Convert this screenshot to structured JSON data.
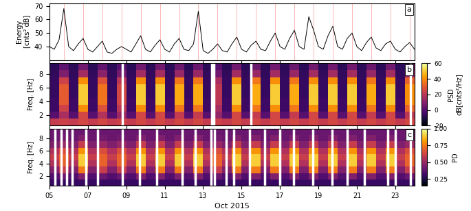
{
  "chart_data": [
    {
      "type": "line",
      "ylabel": "Energy\n[cnts² dB]",
      "annotation": "a",
      "tick_labels": "y",
      "color": "#000000",
      "x": [
        5,
        5.25,
        5.5,
        5.75,
        6,
        6.25,
        6.5,
        6.75,
        7,
        7.25,
        7.5,
        7.75,
        8,
        8.25,
        8.5,
        8.75,
        9,
        9.25,
        9.5,
        9.75,
        10,
        10.25,
        10.5,
        10.75,
        11,
        11.25,
        11.5,
        11.75,
        12,
        12.25,
        12.5,
        12.75,
        13,
        13.25,
        13.5,
        13.75,
        14,
        14.25,
        14.5,
        14.75,
        15,
        15.25,
        15.5,
        15.75,
        16,
        16.25,
        16.5,
        16.75,
        17,
        17.25,
        17.5,
        17.75,
        18,
        18.25,
        18.5,
        18.75,
        19,
        19.25,
        19.5,
        19.75,
        20,
        20.25,
        20.5,
        20.75,
        21,
        21.25,
        21.5,
        21.75,
        22,
        22.25,
        22.5,
        22.75,
        23,
        23.25,
        23.5,
        23.75,
        24
      ],
      "values": [
        40,
        38,
        45,
        68,
        40,
        37,
        42,
        46,
        38,
        36,
        40,
        44,
        36,
        35,
        38,
        40,
        38,
        36,
        42,
        48,
        38,
        36,
        41,
        45,
        38,
        36,
        42,
        46,
        38,
        37,
        42,
        66,
        37,
        35,
        38,
        42,
        37,
        36,
        42,
        47,
        38,
        36,
        41,
        44,
        38,
        37,
        44,
        50,
        40,
        38,
        46,
        52,
        40,
        38,
        62,
        52,
        40,
        38,
        48,
        55,
        40,
        38,
        46,
        50,
        40,
        37,
        43,
        47,
        39,
        37,
        42,
        44,
        38,
        36,
        40,
        43,
        38
      ],
      "vlines": [
        5.75,
        6.75,
        7.75,
        8.75,
        9.75,
        10.75,
        11.75,
        12.75,
        13.75,
        14.75,
        15.75,
        16.75,
        17.75,
        18.75,
        19.75,
        20.75,
        21.75,
        22.75,
        23.75
      ],
      "xlim": [
        5,
        24
      ],
      "xticks": [
        {
          "value": 5,
          "label": "05"
        },
        {
          "value": 7,
          "label": "07"
        },
        {
          "value": 9,
          "label": "09"
        },
        {
          "value": 11,
          "label": "11"
        },
        {
          "value": 13,
          "label": "13"
        },
        {
          "value": 15,
          "label": "15"
        },
        {
          "value": 17,
          "label": "17"
        },
        {
          "value": 19,
          "label": "19"
        },
        {
          "value": 21,
          "label": "21"
        },
        {
          "value": 23,
          "label": "23"
        }
      ],
      "ylim": [
        30,
        72
      ],
      "yticks": [
        40,
        50,
        60,
        70
      ]
    },
    {
      "type": "heatmap",
      "ylabel": "Freq. [Hz]",
      "annotation": "b",
      "tick_labels": "y",
      "x_edges": [
        5,
        5.5,
        6,
        6.5,
        7,
        7.5,
        8,
        8.5,
        9,
        9.5,
        10,
        10.5,
        11,
        11.5,
        12,
        12.5,
        13,
        13.5,
        14,
        14.5,
        15,
        15.5,
        16,
        16.5,
        17,
        17.5,
        18,
        18.5,
        19,
        19.5,
        20,
        20.5,
        21,
        21.5,
        22,
        22.5,
        23,
        23.5,
        24
      ],
      "y_edges": [
        0.5,
        1.5,
        2.5,
        3.5,
        4.5,
        5.5,
        6.5,
        7.5,
        8.5,
        9.5
      ],
      "cells": [
        [
          22,
          24,
          22,
          25,
          22,
          25,
          22,
          24,
          22,
          25,
          22,
          25,
          22,
          25,
          22,
          25,
          22,
          24,
          22,
          25,
          22,
          25,
          22,
          25,
          22,
          25,
          22,
          25,
          22,
          25,
          22,
          25,
          22,
          25,
          22,
          25,
          22,
          25
        ],
        [
          0,
          16,
          0,
          25,
          0,
          18,
          0,
          14,
          0,
          25,
          0,
          25,
          0,
          22,
          0,
          22,
          0,
          12,
          0,
          25,
          0,
          22,
          0,
          25,
          0,
          22,
          0,
          25,
          0,
          25,
          0,
          25,
          0,
          22,
          0,
          25,
          0,
          20
        ],
        [
          -5,
          24,
          -5,
          40,
          -5,
          28,
          -5,
          20,
          -5,
          40,
          -5,
          40,
          -5,
          36,
          -5,
          36,
          -5,
          16,
          -5,
          40,
          -5,
          36,
          -5,
          40,
          -5,
          36,
          -5,
          40,
          -5,
          40,
          -5,
          40,
          -5,
          36,
          -5,
          40,
          -5,
          32
        ],
        [
          -5,
          30,
          -5,
          50,
          -5,
          35,
          -5,
          25,
          -5,
          50,
          -5,
          50,
          -5,
          45,
          -5,
          45,
          -5,
          20,
          -5,
          50,
          -5,
          45,
          -5,
          50,
          -5,
          45,
          -5,
          50,
          -5,
          50,
          -5,
          50,
          -5,
          45,
          -5,
          50,
          -5,
          40
        ],
        [
          -6,
          30,
          -6,
          50,
          -6,
          35,
          -6,
          25,
          -6,
          50,
          -6,
          50,
          -6,
          45,
          -6,
          45,
          -6,
          20,
          -6,
          50,
          -6,
          45,
          -6,
          50,
          -6,
          45,
          -6,
          50,
          -6,
          50,
          -6,
          50,
          -6,
          45,
          -6,
          50,
          -6,
          40
        ],
        [
          -6,
          30,
          -6,
          50,
          -6,
          35,
          -6,
          25,
          -6,
          50,
          -6,
          50,
          -6,
          45,
          -6,
          45,
          -6,
          20,
          -6,
          50,
          -6,
          45,
          -6,
          50,
          -6,
          45,
          -6,
          50,
          -6,
          50,
          -6,
          50,
          -6,
          45,
          -6,
          50,
          -6,
          40
        ],
        [
          -6,
          24,
          -6,
          40,
          -6,
          28,
          -6,
          20,
          -6,
          40,
          -6,
          40,
          -6,
          36,
          -6,
          36,
          -6,
          16,
          -6,
          40,
          -6,
          36,
          -6,
          40,
          -6,
          36,
          -6,
          40,
          -6,
          40,
          -6,
          40,
          -6,
          36,
          -6,
          40,
          -6,
          32
        ],
        [
          -7,
          8,
          -7,
          15,
          -7,
          10,
          -7,
          6,
          -7,
          15,
          -7,
          15,
          -7,
          13,
          -7,
          13,
          -7,
          5,
          -7,
          15,
          -7,
          13,
          -7,
          15,
          -7,
          13,
          -7,
          15,
          -7,
          15,
          -7,
          15,
          -7,
          13,
          -7,
          15,
          -7,
          12
        ],
        [
          -8,
          1,
          -8,
          5,
          -8,
          2,
          -8,
          0,
          -8,
          5,
          -8,
          5,
          -8,
          4,
          -8,
          4,
          -8,
          0,
          -8,
          5,
          -8,
          4,
          -8,
          5,
          -8,
          4,
          -8,
          5,
          -8,
          5,
          -8,
          5,
          -8,
          4,
          -8,
          5,
          -8,
          3
        ]
      ],
      "gaps": [
        8.8,
        13.45,
        13.55,
        15.5,
        23.8
      ],
      "colorbar_label": "PSD\ndB[cnts²/Hz]",
      "colorbar_range": [
        -20,
        60
      ],
      "colorbar_ticks": [
        -20,
        0,
        20,
        40,
        60
      ],
      "xlim": [
        5,
        24
      ],
      "xticks": [
        {
          "value": 5,
          "label": "05"
        },
        {
          "value": 7,
          "label": "07"
        },
        {
          "value": 9,
          "label": "09"
        },
        {
          "value": 11,
          "label": "11"
        },
        {
          "value": 13,
          "label": "13"
        },
        {
          "value": 15,
          "label": "15"
        },
        {
          "value": 17,
          "label": "17"
        },
        {
          "value": 19,
          "label": "19"
        },
        {
          "value": 21,
          "label": "21"
        },
        {
          "value": 23,
          "label": "23"
        }
      ],
      "ylim": [
        0.5,
        9.5
      ],
      "yticks": [
        2,
        4,
        6,
        8
      ]
    },
    {
      "type": "heatmap",
      "ylabel": "Freq. [Hz]",
      "xlabel": "Oct 2015",
      "annotation": "c",
      "x_edges": [
        5,
        5.5,
        6,
        6.5,
        7,
        7.5,
        8,
        8.5,
        9,
        9.5,
        10,
        10.5,
        11,
        11.5,
        12,
        12.5,
        13,
        13.5,
        14,
        14.5,
        15,
        15.5,
        16,
        16.5,
        17,
        17.5,
        18,
        18.5,
        19,
        19.5,
        20,
        20.5,
        21,
        21.5,
        22,
        22.5,
        23,
        23.5,
        24
      ],
      "y_edges": [
        0.5,
        1.5,
        2.5,
        3.5,
        4.5,
        5.5,
        6.5,
        7.5,
        8.5,
        9.5
      ],
      "cells": [
        [
          0.3,
          0.3,
          0.3,
          0.3,
          0.3,
          0.3,
          0.3,
          0.3,
          0.3,
          0.3,
          0.3,
          0.3,
          0.3,
          0.3,
          0.3,
          0.3,
          0.3,
          0.3,
          0.3,
          0.3,
          0.3,
          0.3,
          0.3,
          0.3,
          0.3,
          0.3,
          0.3,
          0.3,
          0.3,
          0.3,
          0.3,
          0.3,
          0.3,
          0.3,
          0.3,
          0.3,
          0.3,
          0.3
        ],
        [
          0.35,
          0.4,
          0.35,
          0.45,
          0.35,
          0.4,
          0.35,
          0.4,
          0.35,
          0.45,
          0.35,
          0.45,
          0.35,
          0.45,
          0.35,
          0.45,
          0.35,
          0.4,
          0.35,
          0.45,
          0.35,
          0.45,
          0.35,
          0.45,
          0.35,
          0.45,
          0.35,
          0.45,
          0.35,
          0.45,
          0.35,
          0.45,
          0.35,
          0.45,
          0.35,
          0.45,
          0.35,
          0.4
        ],
        [
          0.45,
          0.6,
          0.45,
          0.75,
          0.45,
          0.6,
          0.45,
          0.6,
          0.45,
          0.75,
          0.45,
          0.75,
          0.45,
          0.75,
          0.45,
          0.75,
          0.45,
          0.6,
          0.45,
          0.75,
          0.45,
          0.75,
          0.45,
          0.75,
          0.45,
          0.75,
          0.45,
          0.75,
          0.45,
          0.75,
          0.45,
          0.75,
          0.45,
          0.75,
          0.45,
          0.75,
          0.45,
          0.6
        ],
        [
          0.55,
          0.7,
          0.55,
          0.9,
          0.55,
          0.7,
          0.55,
          0.7,
          0.55,
          0.9,
          0.55,
          0.9,
          0.55,
          0.9,
          0.55,
          0.9,
          0.55,
          0.7,
          0.55,
          0.9,
          0.55,
          0.9,
          0.55,
          0.9,
          0.55,
          0.9,
          0.55,
          0.9,
          0.55,
          0.9,
          0.55,
          0.9,
          0.55,
          0.9,
          0.55,
          0.9,
          0.55,
          0.7
        ],
        [
          0.6,
          0.7,
          0.6,
          0.9,
          0.6,
          0.7,
          0.6,
          0.7,
          0.6,
          0.9,
          0.6,
          0.9,
          0.6,
          0.9,
          0.6,
          0.9,
          0.6,
          0.7,
          0.6,
          0.9,
          0.6,
          0.9,
          0.6,
          0.9,
          0.6,
          0.9,
          0.6,
          0.9,
          0.6,
          0.9,
          0.6,
          0.9,
          0.6,
          0.9,
          0.6,
          0.9,
          0.6,
          0.7
        ],
        [
          0.55,
          0.65,
          0.55,
          0.8,
          0.55,
          0.65,
          0.55,
          0.65,
          0.55,
          0.8,
          0.55,
          0.8,
          0.55,
          0.8,
          0.55,
          0.8,
          0.55,
          0.65,
          0.55,
          0.8,
          0.55,
          0.8,
          0.55,
          0.8,
          0.55,
          0.8,
          0.55,
          0.8,
          0.55,
          0.8,
          0.55,
          0.8,
          0.55,
          0.8,
          0.55,
          0.8,
          0.55,
          0.65
        ],
        [
          0.45,
          0.5,
          0.45,
          0.6,
          0.45,
          0.5,
          0.45,
          0.5,
          0.45,
          0.6,
          0.45,
          0.6,
          0.45,
          0.6,
          0.45,
          0.6,
          0.45,
          0.5,
          0.45,
          0.6,
          0.45,
          0.6,
          0.45,
          0.6,
          0.45,
          0.6,
          0.45,
          0.6,
          0.45,
          0.6,
          0.45,
          0.6,
          0.45,
          0.6,
          0.45,
          0.6,
          0.45,
          0.5
        ],
        [
          0.4,
          0.42,
          0.4,
          0.45,
          0.4,
          0.42,
          0.4,
          0.42,
          0.4,
          0.45,
          0.4,
          0.45,
          0.4,
          0.45,
          0.4,
          0.45,
          0.4,
          0.42,
          0.4,
          0.45,
          0.4,
          0.45,
          0.4,
          0.45,
          0.4,
          0.45,
          0.4,
          0.45,
          0.4,
          0.45,
          0.4,
          0.45,
          0.4,
          0.45,
          0.4,
          0.45,
          0.4,
          0.42
        ],
        [
          0.4,
          0.4,
          0.4,
          0.4,
          0.4,
          0.4,
          0.4,
          0.4,
          0.4,
          0.4,
          0.4,
          0.4,
          0.4,
          0.4,
          0.4,
          0.4,
          0.4,
          0.4,
          0.4,
          0.4,
          0.4,
          0.4,
          0.4,
          0.4,
          0.4,
          0.4,
          0.4,
          0.4,
          0.4,
          0.4,
          0.4,
          0.4,
          0.4,
          0.4,
          0.4,
          0.4,
          0.4,
          0.4
        ]
      ],
      "gaps": [
        5.3,
        5.6,
        5.9,
        6.2,
        6.9,
        7.5,
        8.8,
        9.7,
        10.6,
        11.9,
        12.6,
        13.4,
        13.6,
        14.2,
        14.6,
        15.4,
        16.2,
        17.0,
        17.7,
        18.7,
        19.7,
        20.5,
        21.4,
        22.6,
        23.0,
        23.8
      ],
      "colorbar_label": "PD",
      "colorbar_range": [
        0.15,
        1.0
      ],
      "colorbar_ticks": [
        {
          "value": 0.25,
          "label": "0.25"
        },
        {
          "value": 0.5,
          "label": "0.50"
        },
        {
          "value": 0.75,
          "label": "0.75"
        },
        {
          "value": 1.0,
          "label": "1.00"
        }
      ],
      "xlim": [
        5,
        24
      ],
      "xticks": [
        {
          "value": 5,
          "label": "05"
        },
        {
          "value": 7,
          "label": "07"
        },
        {
          "value": 9,
          "label": "09"
        },
        {
          "value": 11,
          "label": "11"
        },
        {
          "value": 13,
          "label": "13"
        },
        {
          "value": 15,
          "label": "15"
        },
        {
          "value": 17,
          "label": "17"
        },
        {
          "value": 19,
          "label": "19"
        },
        {
          "value": 21,
          "label": "21"
        },
        {
          "value": 23,
          "label": "23"
        }
      ],
      "ylim": [
        0.5,
        9.5
      ],
      "yticks": [
        2,
        4,
        6,
        8
      ]
    }
  ]
}
